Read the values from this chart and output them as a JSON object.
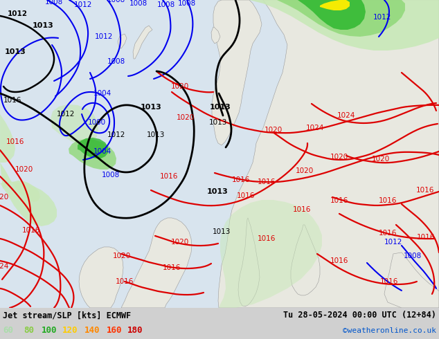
{
  "title_left": "Jet stream/SLP [kts] ECMWF",
  "title_right": "Tu 28-05-2024 00:00 UTC (12+84)",
  "credit": "©weatheronline.co.uk",
  "legend_values": [
    "60",
    "80",
    "100",
    "120",
    "140",
    "160",
    "180"
  ],
  "legend_colors": [
    "#aaddaa",
    "#88cc44",
    "#22aa22",
    "#ffcc00",
    "#ff8800",
    "#ff3300",
    "#cc0000"
  ],
  "bg_color": "#d0d0d0",
  "ocean_color": "#d8e4ee",
  "land_color": "#e8e8e0",
  "figsize": [
    6.34,
    4.9
  ],
  "dpi": 100,
  "jet_light_green": "#c8e8b8",
  "jet_mid_green": "#90d878",
  "jet_bright_green": "#30b830",
  "jet_dark_green": "#108810",
  "jet_yellow": "#ffee00"
}
